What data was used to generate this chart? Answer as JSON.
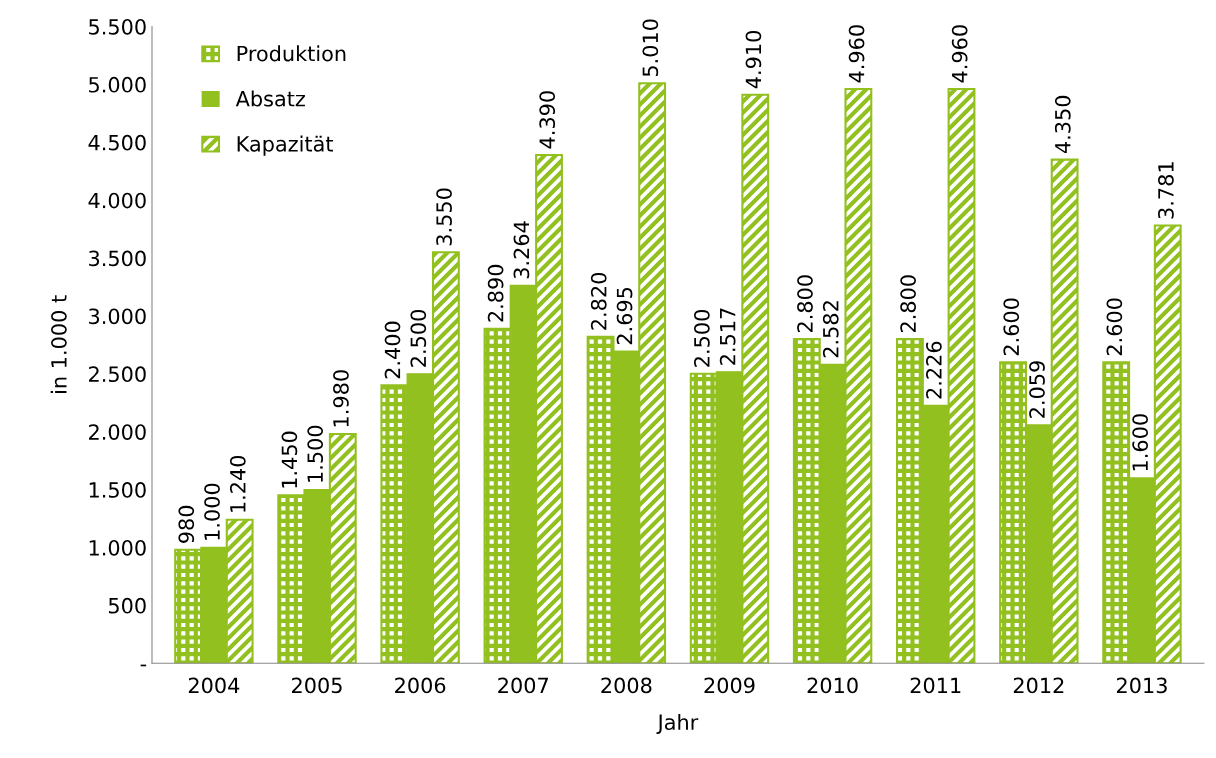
{
  "chart_data": {
    "type": "bar",
    "xlabel": "Jahr",
    "ylabel": "in 1.000 t",
    "categories": [
      "2004",
      "2005",
      "2006",
      "2007",
      "2008",
      "2009",
      "2010",
      "2011",
      "2012",
      "2013"
    ],
    "series": [
      {
        "name": "Produktion",
        "color": "#92c01f",
        "values": [
          980,
          1450,
          2400,
          2890,
          2820,
          2500,
          2800,
          2800,
          2600,
          2600
        ],
        "value_labels": [
          "980",
          "1.450",
          "2.400",
          "2.890",
          "2.820",
          "2.500",
          "2.800",
          "2.800",
          "2.600",
          "2.600"
        ]
      },
      {
        "name": "Absatz",
        "color": "#92c01f",
        "values": [
          1000,
          1500,
          2500,
          3264,
          2695,
          2517,
          2582,
          2226,
          2059,
          1600
        ],
        "value_labels": [
          "1.000",
          "1.500",
          "2.500",
          "3.264",
          "2.695",
          "2.517",
          "2.582",
          "2.226",
          "2.059",
          "1.600"
        ]
      },
      {
        "name": "Kapazität",
        "color": "#92c01f",
        "values": [
          1240,
          1980,
          3550,
          4390,
          5010,
          4910,
          4960,
          4960,
          4350,
          3781
        ],
        "value_labels": [
          "1.240",
          "1.980",
          "3.550",
          "4.390",
          "5.010",
          "4.910",
          "4.960",
          "4.960",
          "4.350",
          "3.781"
        ]
      }
    ],
    "ylim": [
      0,
      5500
    ],
    "yticks": [
      {
        "value": 0,
        "label": "-"
      },
      500,
      {
        "value": 1000,
        "label": "1.000"
      },
      {
        "value": 1500,
        "label": "1.500"
      },
      {
        "value": 2000,
        "label": "2.000"
      },
      {
        "value": 2500,
        "label": "2.500"
      },
      {
        "value": 3000,
        "label": "3.000"
      },
      {
        "value": 3500,
        "label": "3.500"
      },
      {
        "value": 4000,
        "label": "4.000"
      },
      {
        "value": 4500,
        "label": "4.500"
      },
      {
        "value": 5000,
        "label": "5.000"
      },
      {
        "value": 5500,
        "label": "5.500"
      }
    ],
    "grid": false,
    "legend": "top left"
  }
}
